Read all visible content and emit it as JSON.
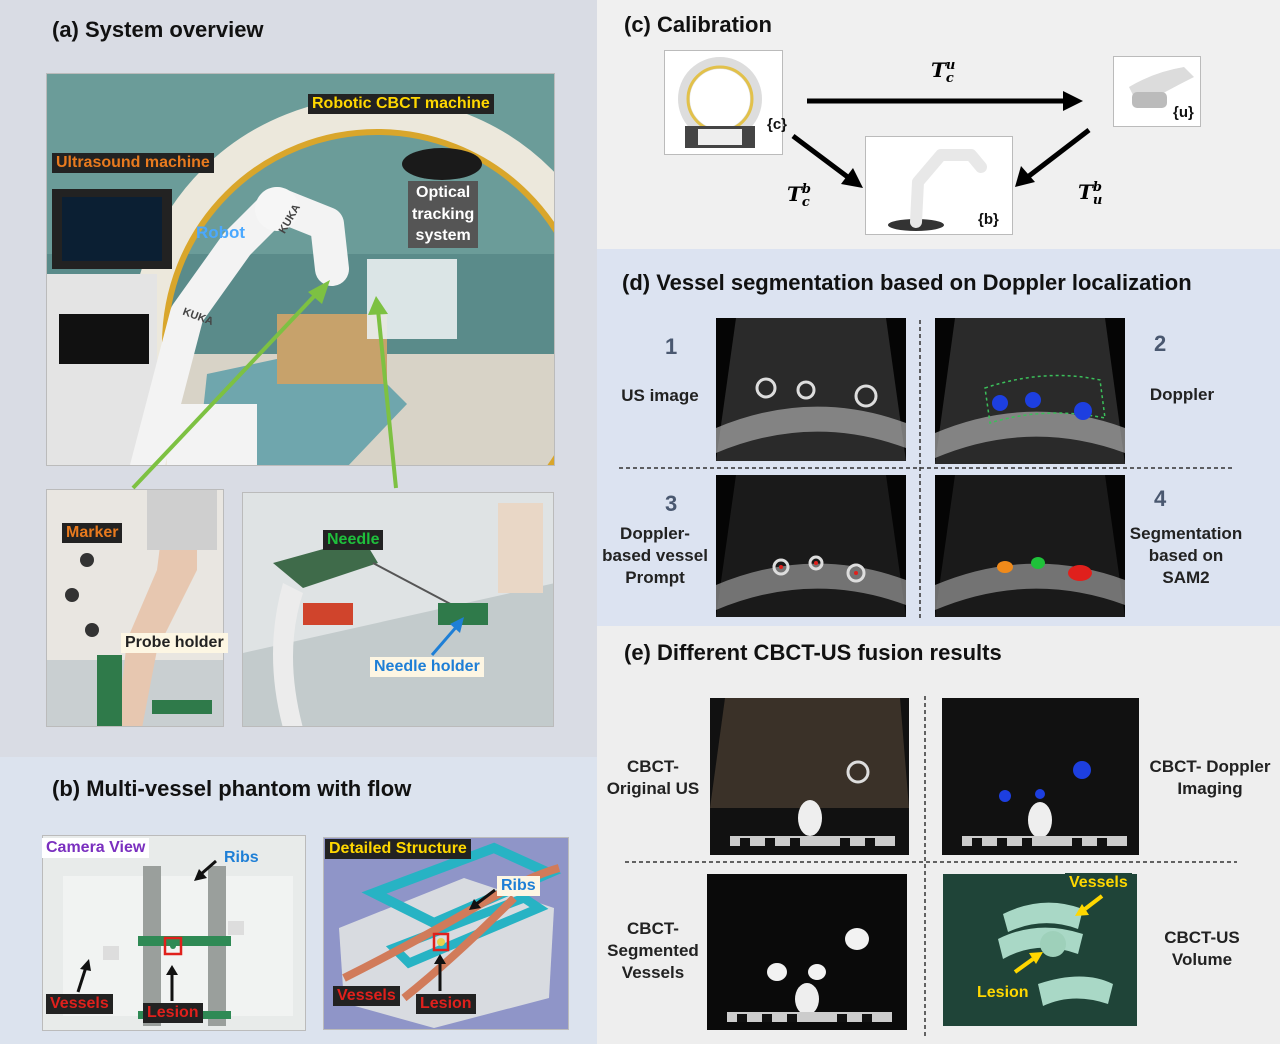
{
  "panel_a": {
    "title": "(a) System overview",
    "labels": {
      "robotic_cbct": "Robotic CBCT machine",
      "ultrasound_machine": "Ultrasound machine",
      "robot": "Robot",
      "optical_tracking": [
        "Optical",
        "tracking",
        "system"
      ],
      "kuka1": "KUKA",
      "kuka2": "KUKA",
      "marker": "Marker",
      "probe_holder": "Probe holder",
      "needle": "Needle",
      "needle_holder": "Needle holder"
    }
  },
  "panel_b": {
    "title": "(b) Multi-vessel phantom with flow",
    "camera_view": "Camera View",
    "ribs_left": "Ribs",
    "vessels_left": "Vessels",
    "lesion_left": "Lesion",
    "detailed_structure": "Detailed Structure",
    "ribs_right": "Ribs",
    "vessels_right": "Vessels",
    "lesion_right": "Lesion"
  },
  "panel_c": {
    "title": "(c) Calibration",
    "frame_c": "{c}",
    "frame_u": "{u}",
    "frame_b": "{b}",
    "t_cu_base": "T",
    "t_cu_sub": "c",
    "t_cu_sup": "u",
    "t_cb_base": "T",
    "t_cb_sub": "c",
    "t_cb_sup": "b",
    "t_ub_base": "T",
    "t_ub_sub": "u",
    "t_ub_sup": "b"
  },
  "panel_d": {
    "title": "(d) Vessel segmentation based on Doppler localization",
    "n1": "1",
    "l1": [
      "US image"
    ],
    "n2": "2",
    "l2": [
      "Doppler"
    ],
    "n3": "3",
    "l3": [
      "Doppler-",
      "based vessel",
      "Prompt"
    ],
    "n4": "4",
    "l4": [
      "Segmentation",
      "based on",
      "SAM2"
    ]
  },
  "panel_e": {
    "title": "(e) Different CBCT-US fusion results",
    "l1": [
      "CBCT-",
      "Original US"
    ],
    "l2": [
      "CBCT- Doppler",
      "Imaging"
    ],
    "l3": [
      "CBCT-",
      "Segmented",
      "Vessels"
    ],
    "l4": [
      "CBCT-US",
      "Volume"
    ],
    "vessels": "Vessels",
    "lesion": "Lesion"
  },
  "colors": {
    "panel_a_bg": "#d9dce4",
    "panel_b_bg": "#dce3ee",
    "panel_c_bg": "#f0f0f0",
    "panel_d_bg": "#dce3f1",
    "panel_e_bg": "#eeeeee",
    "label_yellow": "#ffd700",
    "label_orange": "#e87a1e",
    "label_green": "#1fbf3c",
    "label_blue": "#1e7fd6",
    "label_red": "#e0201c",
    "label_purple": "#7a2fbf",
    "arrow_green": "#7dc142"
  }
}
